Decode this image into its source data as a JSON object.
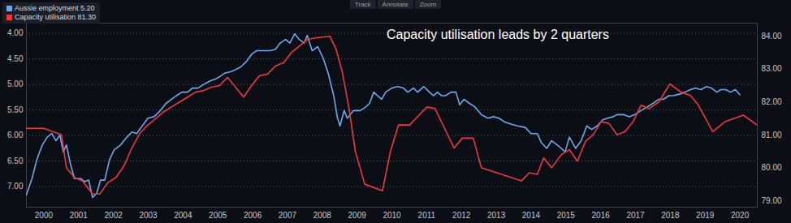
{
  "chart_data": {
    "type": "line",
    "annotations": [
      "Capacity utilisation leads by 2 quarters"
    ],
    "toolbar": [
      "Track",
      "Annotate",
      "Zoom"
    ],
    "legend": "top-left",
    "grid": true,
    "xlim": [
      2000,
      2021
    ],
    "xticks": [
      {
        "value": 2000.5,
        "label": "2000"
      },
      {
        "value": 2001.5,
        "label": "2001"
      },
      {
        "value": 2002.5,
        "label": "2002"
      },
      {
        "value": 2003.5,
        "label": "2003"
      },
      {
        "value": 2004.5,
        "label": "2004"
      },
      {
        "value": 2005.5,
        "label": "2005"
      },
      {
        "value": 2006.5,
        "label": "2006"
      },
      {
        "value": 2007.5,
        "label": "2007"
      },
      {
        "value": 2008.5,
        "label": "2008"
      },
      {
        "value": 2009.5,
        "label": "2009"
      },
      {
        "value": 2010.5,
        "label": "2010"
      },
      {
        "value": 2011.5,
        "label": "2011"
      },
      {
        "value": 2012.5,
        "label": "2012"
      },
      {
        "value": 2013.5,
        "label": "2013"
      },
      {
        "value": 2014.5,
        "label": "2014"
      },
      {
        "value": 2015.5,
        "label": "2015"
      },
      {
        "value": 2016.5,
        "label": "2016"
      },
      {
        "value": 2017.5,
        "label": "2017"
      },
      {
        "value": 2018.5,
        "label": "2018"
      },
      {
        "value": 2019.5,
        "label": "2019"
      },
      {
        "value": 2020.5,
        "label": "2020"
      }
    ],
    "ylim": [
      7.4,
      3.8
    ],
    "yticks": [
      {
        "value": 4,
        "label": "4.00"
      },
      {
        "value": 4.5,
        "label": "4.50"
      },
      {
        "value": 5,
        "label": "5.00"
      },
      {
        "value": 5.5,
        "label": "5.50"
      },
      {
        "value": 6,
        "label": "6.00"
      },
      {
        "value": 6.5,
        "label": "6.50"
      },
      {
        "value": 7,
        "label": "7.00"
      }
    ],
    "y2lim": [
      78.8,
      84.4
    ],
    "y2ticks": [
      {
        "value": 79,
        "label": "79.00"
      },
      {
        "value": 80,
        "label": "80.00"
      },
      {
        "value": 81,
        "label": "81.00"
      },
      {
        "value": 82,
        "label": "82.00"
      },
      {
        "value": 83,
        "label": "83.00"
      },
      {
        "value": 84,
        "label": "84.00"
      }
    ],
    "series": [
      {
        "name": "Aussie employment 5.20",
        "color": "#6aaaf0",
        "x": [
          2000.0,
          2000.16,
          2000.3,
          2000.46,
          2000.6,
          2000.73,
          2000.85,
          2000.96,
          2001.06,
          2001.15,
          2001.26,
          2001.38,
          2001.56,
          2001.67,
          2001.79,
          2001.9,
          2002.02,
          2002.13,
          2002.25,
          2002.39,
          2002.52,
          2002.71,
          2002.89,
          2003.03,
          2003.17,
          2003.33,
          2003.49,
          2003.67,
          2003.85,
          2004.01,
          2004.17,
          2004.31,
          2004.47,
          2004.63,
          2004.77,
          2004.93,
          2005.09,
          2005.28,
          2005.41,
          2005.55,
          2005.69,
          2005.87,
          2006.01,
          2006.15,
          2006.31,
          2006.47,
          2006.61,
          2006.83,
          2007.0,
          2007.16,
          2007.29,
          2007.45,
          2007.57,
          2007.71,
          2007.84,
          2007.98,
          2008.07,
          2008.21,
          2008.37,
          2008.53,
          2008.67,
          2008.83,
          2008.94,
          2009.01,
          2009.13,
          2009.22,
          2009.4,
          2009.59,
          2009.75,
          2009.86,
          2009.98,
          2010.09,
          2010.21,
          2010.32,
          2010.5,
          2010.67,
          2010.83,
          2010.96,
          2011.12,
          2011.24,
          2011.42,
          2011.58,
          2011.7,
          2011.81,
          2011.93,
          2012.04,
          2012.2,
          2012.34,
          2012.45,
          2012.57,
          2012.73,
          2012.89,
          2013.07,
          2013.26,
          2013.42,
          2013.58,
          2013.76,
          2013.94,
          2014.11,
          2014.33,
          2014.5,
          2014.68,
          2014.79,
          2014.95,
          2015.09,
          2015.25,
          2015.37,
          2015.48,
          2015.6,
          2015.78,
          2015.94,
          2016.1,
          2016.24,
          2016.4,
          2016.56,
          2016.7,
          2016.86,
          2016.97,
          2017.16,
          2017.32,
          2017.48,
          2017.66,
          2017.84,
          2018.0,
          2018.17,
          2018.3,
          2018.46,
          2018.58,
          2018.76,
          2018.92,
          2019.08,
          2019.22,
          2019.38,
          2019.54,
          2019.68,
          2019.84,
          2019.95,
          2020.09,
          2020.23,
          2020.37,
          2020.5
        ],
        "values": [
          7.16,
          6.84,
          6.47,
          6.18,
          6.03,
          5.96,
          6.1,
          5.99,
          6.32,
          6.18,
          6.54,
          6.84,
          6.84,
          6.9,
          6.87,
          7.21,
          7.13,
          6.87,
          6.87,
          6.47,
          6.28,
          6.18,
          6.03,
          5.93,
          5.96,
          5.81,
          5.66,
          5.63,
          5.51,
          5.37,
          5.29,
          5.22,
          5.15,
          5.15,
          5.07,
          5.07,
          5.0,
          4.93,
          4.9,
          4.85,
          4.78,
          4.75,
          4.71,
          4.66,
          4.56,
          4.41,
          4.34,
          4.34,
          4.34,
          4.31,
          4.19,
          4.12,
          4.19,
          4.01,
          4.12,
          4.19,
          4.04,
          4.34,
          4.26,
          4.49,
          4.78,
          5.22,
          5.66,
          5.81,
          5.51,
          5.66,
          5.51,
          5.51,
          5.44,
          5.37,
          5.15,
          5.22,
          5.29,
          5.15,
          5.07,
          5.04,
          5.07,
          5.15,
          5.07,
          5.15,
          5.04,
          5.15,
          5.22,
          5.15,
          5.22,
          5.22,
          5.15,
          5.15,
          5.4,
          5.29,
          5.37,
          5.44,
          5.59,
          5.66,
          5.63,
          5.66,
          5.74,
          5.78,
          5.81,
          5.84,
          5.96,
          5.96,
          6.13,
          6.25,
          6.1,
          6.18,
          6.25,
          6.32,
          6.03,
          6.25,
          6.1,
          5.81,
          5.88,
          5.81,
          5.69,
          5.66,
          5.63,
          5.59,
          5.59,
          5.63,
          5.59,
          5.51,
          5.44,
          5.37,
          5.29,
          5.29,
          5.22,
          5.22,
          5.19,
          5.15,
          5.1,
          5.07,
          5.1,
          5.04,
          5.07,
          5.15,
          5.1,
          5.1,
          5.15,
          5.1,
          5.2
        ]
      },
      {
        "name": "Capacity utilisation 81.30",
        "color": "#f0383a",
        "axis": "y2",
        "x": [
          2000.0,
          2000.5,
          2001.01,
          2001.15,
          2001.38,
          2001.61,
          2001.9,
          2002.11,
          2002.34,
          2002.57,
          2002.8,
          2003.03,
          2003.26,
          2003.49,
          2003.72,
          2003.94,
          2004.17,
          2004.4,
          2004.63,
          2004.86,
          2005.09,
          2005.32,
          2005.55,
          2005.78,
          2006.01,
          2006.24,
          2006.47,
          2006.7,
          2006.93,
          2007.16,
          2007.39,
          2007.61,
          2007.84,
          2008.07,
          2008.3,
          2008.72,
          2008.9,
          2009.08,
          2009.27,
          2009.45,
          2009.72,
          2010.23,
          2010.46,
          2010.69,
          2011.01,
          2011.28,
          2011.51,
          2011.74,
          2012.06,
          2012.29,
          2012.52,
          2012.84,
          2013.07,
          2014.22,
          2014.45,
          2014.68,
          2014.86,
          2015.09,
          2015.37,
          2015.6,
          2015.83,
          2016.06,
          2016.28,
          2016.51,
          2016.74,
          2016.97,
          2017.2,
          2017.43,
          2017.66,
          2017.89,
          2018.17,
          2018.49,
          2018.81,
          2019.08,
          2019.31,
          2019.72,
          2020.07,
          2020.6,
          2020.99
        ],
        "values": [
          81.2,
          81.2,
          81.0,
          80.0,
          79.7,
          79.6,
          79.2,
          79.2,
          79.55,
          79.7,
          80.05,
          80.6,
          81.05,
          81.3,
          81.5,
          81.7,
          81.85,
          82.0,
          82.15,
          82.3,
          82.35,
          82.45,
          82.5,
          82.75,
          82.45,
          82.15,
          82.5,
          82.8,
          82.85,
          83.1,
          83.2,
          83.5,
          83.7,
          83.9,
          83.95,
          84.0,
          83.6,
          82.9,
          81.8,
          80.5,
          79.5,
          79.3,
          80.5,
          81.3,
          81.3,
          81.6,
          81.85,
          81.8,
          81.1,
          80.6,
          80.9,
          80.9,
          80.0,
          79.6,
          79.85,
          79.8,
          80.3,
          80.0,
          80.4,
          80.55,
          80.2,
          80.8,
          81.0,
          81.4,
          81.35,
          81.0,
          81.1,
          81.4,
          81.9,
          81.8,
          82.0,
          82.55,
          82.3,
          82.2,
          81.9,
          81.1,
          81.4,
          81.6,
          81.3
        ]
      }
    ]
  }
}
